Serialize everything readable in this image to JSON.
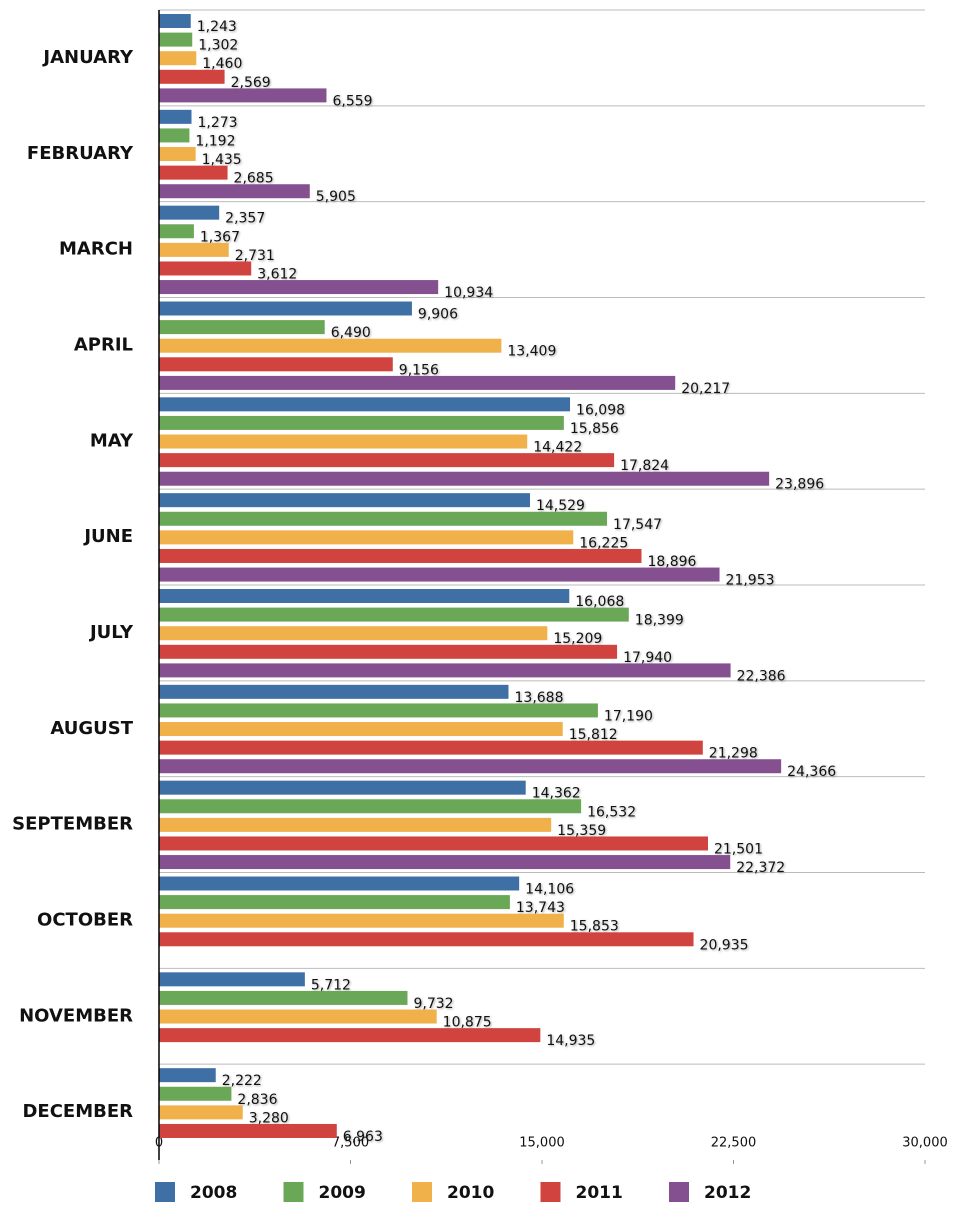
{
  "chart_data": {
    "type": "bar",
    "orientation": "horizontal",
    "categories": [
      "JANUARY",
      "FEBRUARY",
      "MARCH",
      "APRIL",
      "MAY",
      "JUNE",
      "JULY",
      "AUGUST",
      "SEPTEMBER",
      "OCTOBER",
      "NOVEMBER",
      "DECEMBER"
    ],
    "series": [
      {
        "name": "2008",
        "color": "#3e6fa5",
        "values": [
          1243,
          1273,
          2357,
          9906,
          16098,
          14529,
          16068,
          13688,
          14362,
          14106,
          5712,
          2222
        ],
        "value_labels": [
          "1,243",
          "1,273",
          "2,357",
          "9,906",
          "16,098",
          "14,529",
          "16,068",
          "13,688",
          "14,362",
          "14,106",
          "5,712",
          "2,222"
        ]
      },
      {
        "name": "2009",
        "color": "#6aa857",
        "values": [
          1302,
          1192,
          1367,
          6490,
          15856,
          17547,
          18399,
          17190,
          16532,
          13743,
          9732,
          2836
        ],
        "value_labels": [
          "1,302",
          "1,192",
          "1,367",
          "6,490",
          "15,856",
          "17,547",
          "18,399",
          "17,190",
          "16,532",
          "13,743",
          "9,732",
          "2,836"
        ]
      },
      {
        "name": "2010",
        "color": "#f0b04a",
        "values": [
          1460,
          1435,
          2731,
          13409,
          14422,
          16225,
          15209,
          15812,
          15359,
          15853,
          10875,
          3280
        ],
        "value_labels": [
          "1,460",
          "1,435",
          "2,731",
          "13,409",
          "14,422",
          "16,225",
          "15,209",
          "15,812",
          "15,359",
          "15,853",
          "10,875",
          "3,280"
        ]
      },
      {
        "name": "2011",
        "color": "#d0433f",
        "values": [
          2569,
          2685,
          3612,
          9156,
          17824,
          18896,
          17940,
          21298,
          21501,
          20935,
          14935,
          6963
        ],
        "value_labels": [
          "2,569",
          "2,685",
          "3,612",
          "9,156",
          "17,824",
          "18,896",
          "17,940",
          "21,298",
          "21,501",
          "20,935",
          "14,935",
          "6,963"
        ]
      },
      {
        "name": "2012",
        "color": "#85508f",
        "values": [
          6559,
          5905,
          10934,
          20217,
          23896,
          21953,
          22386,
          24366,
          22372,
          null,
          null,
          null
        ],
        "value_labels": [
          "6,559",
          "5,905",
          "10,934",
          "20,217",
          "23,896",
          "21,953",
          "22,386",
          "24,366",
          "22,372",
          null,
          null,
          null
        ]
      }
    ],
    "xlim": [
      0,
      30000
    ],
    "xticks": [
      0,
      {
        "value": 7500,
        "label": "7,500"
      },
      {
        "value": 15000,
        "label": "15,000"
      },
      {
        "value": 22500,
        "label": "22,500"
      },
      {
        "value": 30000,
        "label": "30,000"
      }
    ],
    "legend": "bottom"
  }
}
